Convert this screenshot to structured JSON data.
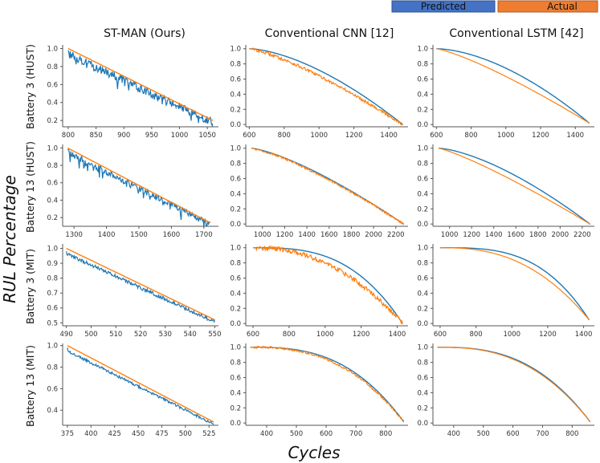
{
  "figure": {
    "ylabel": "RUL Percentage",
    "xlabel": "Cycles",
    "legend": [
      {
        "label": "Predicted",
        "color": "#4472C4"
      },
      {
        "label": "Actual",
        "color": "#ED7D31"
      }
    ],
    "columns": [
      "ST-MAN (Ours)",
      "Conventional CNN [12]",
      "Conventional LSTM [42]"
    ],
    "rows": [
      "Battery 3 (HUST)",
      "Battery 13 (HUST)",
      "Battery 3 (MIT)",
      "Battery 13 (MIT)"
    ]
  },
  "colors": {
    "predicted": "#1f77b4",
    "actual": "#ff7f0e",
    "axis": "#555555"
  },
  "chart_data": [
    {
      "type": "line",
      "row": 0,
      "col": 0,
      "xlim": [
        790,
        1070
      ],
      "ylim": [
        0.13,
        1.04
      ],
      "xticks": [
        800,
        850,
        900,
        950,
        1000,
        1050
      ],
      "yticks": [
        0.2,
        0.4,
        0.6,
        0.8,
        1.0
      ],
      "actual": {
        "model": "linear",
        "x": [
          800,
          1060
        ],
        "y": [
          1.0,
          0.2
        ]
      },
      "predicted": {
        "model": "noisy",
        "bias": -0.06,
        "noise": 0.045,
        "spikes": 0.1
      }
    },
    {
      "type": "line",
      "row": 0,
      "col": 1,
      "xlim": [
        580,
        1510
      ],
      "ylim": [
        -0.03,
        1.05
      ],
      "xticks": [
        600,
        800,
        1000,
        1200,
        1400
      ],
      "yticks": [
        0.0,
        0.2,
        0.4,
        0.6,
        0.8,
        1.0
      ],
      "actual": {
        "model": "curve",
        "x": [
          600,
          1480
        ],
        "y": [
          1.0,
          0.0
        ],
        "k": 1.3,
        "noise": 0.02
      },
      "predicted": {
        "model": "curve",
        "k": 1.6,
        "noise": 0
      }
    },
    {
      "type": "line",
      "row": 0,
      "col": 2,
      "xlim": [
        580,
        1510
      ],
      "ylim": [
        -0.03,
        1.05
      ],
      "xticks": [
        600,
        800,
        1000,
        1200,
        1400
      ],
      "yticks": [
        0.0,
        0.2,
        0.4,
        0.6,
        0.8,
        1.0
      ],
      "actual": {
        "model": "curve",
        "x": [
          600,
          1480
        ],
        "y": [
          1.0,
          0.02
        ],
        "k": 1.25,
        "noise": 0
      },
      "predicted": {
        "model": "curve",
        "k": 1.7,
        "noise": 0
      }
    },
    {
      "type": "line",
      "row": 1,
      "col": 0,
      "xlim": [
        1265,
        1745
      ],
      "ylim": [
        0.1,
        1.04
      ],
      "xticks": [
        1300,
        1400,
        1500,
        1600,
        1700
      ],
      "yticks": [
        0.2,
        0.4,
        0.6,
        0.8,
        1.0
      ],
      "actual": {
        "model": "linear",
        "x": [
          1280,
          1720
        ],
        "y": [
          1.0,
          0.14
        ]
      },
      "predicted": {
        "model": "noisy",
        "bias": -0.05,
        "noise": 0.035,
        "spikes": 0.1
      }
    },
    {
      "type": "line",
      "row": 1,
      "col": 1,
      "xlim": [
        850,
        2310
      ],
      "ylim": [
        -0.03,
        1.05
      ],
      "xticks": [
        1000,
        1200,
        1400,
        1600,
        1800,
        2000,
        2200
      ],
      "yticks": [
        0.0,
        0.2,
        0.4,
        0.6,
        0.8,
        1.0
      ],
      "actual": {
        "model": "curve",
        "x": [
          900,
          2270
        ],
        "y": [
          1.0,
          0.0
        ],
        "k": 1.3,
        "noise": 0.015
      },
      "predicted": {
        "model": "curve",
        "k": 1.35,
        "noise": 0
      }
    },
    {
      "type": "line",
      "row": 1,
      "col": 2,
      "xlim": [
        850,
        2310
      ],
      "ylim": [
        -0.03,
        1.05
      ],
      "xticks": [
        1000,
        1200,
        1400,
        1600,
        1800,
        2000,
        2200
      ],
      "yticks": [
        0.0,
        0.2,
        0.4,
        0.6,
        0.8,
        1.0
      ],
      "actual": {
        "model": "curve",
        "x": [
          900,
          2270
        ],
        "y": [
          1.0,
          0.0
        ],
        "k": 1.2,
        "noise": 0
      },
      "predicted": {
        "model": "curve",
        "k": 1.5,
        "noise": 0
      }
    },
    {
      "type": "line",
      "row": 2,
      "col": 0,
      "xlim": [
        488.5,
        551.5
      ],
      "ylim": [
        0.48,
        1.03
      ],
      "xticks": [
        490,
        500,
        510,
        520,
        530,
        540,
        550
      ],
      "yticks": [
        0.5,
        0.6,
        0.7,
        0.8,
        0.9,
        1.0
      ],
      "actual": {
        "model": "linear",
        "x": [
          490,
          550
        ],
        "y": [
          1.0,
          0.52
        ]
      },
      "predicted": {
        "model": "noisy",
        "bias": -0.035,
        "noise": 0.012,
        "spikes": 0
      }
    },
    {
      "type": "line",
      "row": 2,
      "col": 1,
      "xlim": [
        560,
        1460
      ],
      "ylim": [
        -0.03,
        1.05
      ],
      "xticks": [
        600,
        800,
        1000,
        1200,
        1400
      ],
      "yticks": [
        0.0,
        0.2,
        0.4,
        0.6,
        0.8,
        1.0
      ],
      "actual": {
        "model": "curve",
        "x": [
          600,
          1430
        ],
        "y": [
          1.0,
          0.0
        ],
        "k": 2.2,
        "noise": 0.03
      },
      "predicted": {
        "model": "curve",
        "k": 3.0,
        "noise": 0
      }
    },
    {
      "type": "line",
      "row": 2,
      "col": 2,
      "xlim": [
        560,
        1460
      ],
      "ylim": [
        -0.03,
        1.05
      ],
      "xticks": [
        600,
        800,
        1000,
        1200,
        1400
      ],
      "yticks": [
        0.0,
        0.2,
        0.4,
        0.6,
        0.8,
        1.0
      ],
      "actual": {
        "model": "curve",
        "x": [
          600,
          1430
        ],
        "y": [
          1.0,
          0.05
        ],
        "k": 2.5,
        "noise": 0
      },
      "predicted": {
        "model": "curve",
        "k": 3.2,
        "noise": 0
      }
    },
    {
      "type": "line",
      "row": 3,
      "col": 0,
      "xlim": [
        370,
        535
      ],
      "ylim": [
        0.26,
        1.02
      ],
      "xticks": [
        375,
        400,
        425,
        450,
        475,
        500,
        525
      ],
      "yticks": [
        0.4,
        0.6,
        0.8,
        1.0
      ],
      "actual": {
        "model": "linear",
        "x": [
          375,
          530
        ],
        "y": [
          1.0,
          0.29
        ]
      },
      "predicted": {
        "model": "noisy",
        "bias": -0.05,
        "noise": 0.012,
        "spikes": 0
      }
    },
    {
      "type": "line",
      "row": 3,
      "col": 1,
      "xlim": [
        330,
        875
      ],
      "ylim": [
        -0.03,
        1.05
      ],
      "xticks": [
        400,
        500,
        600,
        700,
        800
      ],
      "yticks": [
        0.0,
        0.2,
        0.4,
        0.6,
        0.8,
        1.0
      ],
      "actual": {
        "model": "curve",
        "x": [
          345,
          860
        ],
        "y": [
          1.0,
          0.02
        ],
        "k": 2.6,
        "noise": 0.015
      },
      "predicted": {
        "model": "curve",
        "k": 2.8,
        "noise": 0
      }
    },
    {
      "type": "line",
      "row": 3,
      "col": 2,
      "xlim": [
        330,
        875
      ],
      "ylim": [
        -0.03,
        1.05
      ],
      "xticks": [
        400,
        500,
        600,
        700,
        800
      ],
      "yticks": [
        0.0,
        0.2,
        0.4,
        0.6,
        0.8,
        1.0
      ],
      "actual": {
        "model": "curve",
        "x": [
          345,
          860
        ],
        "y": [
          1.0,
          0.02
        ],
        "k": 2.6,
        "noise": 0
      },
      "predicted": {
        "model": "curve",
        "k": 2.7,
        "noise": 0
      }
    }
  ]
}
